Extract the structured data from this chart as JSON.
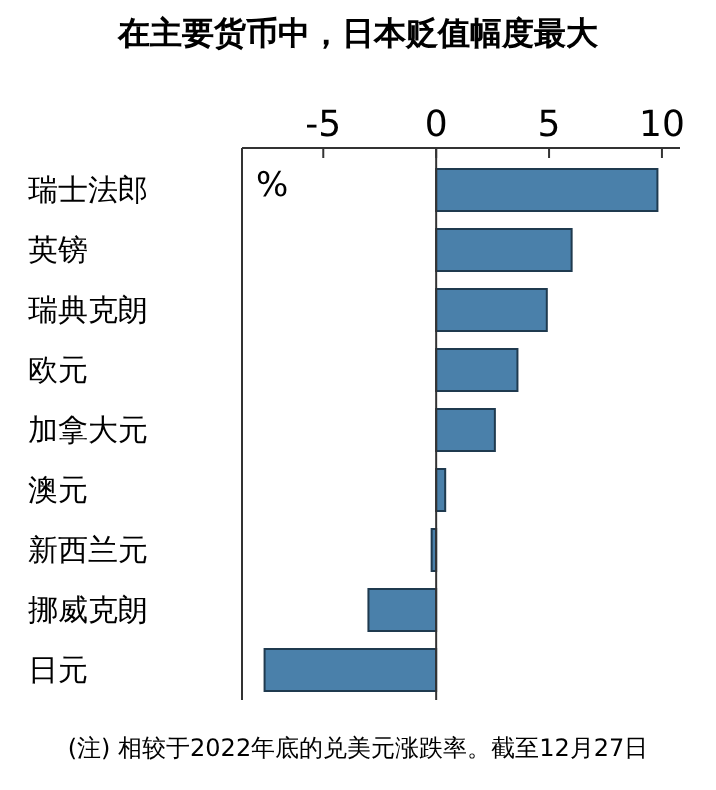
{
  "chart_data": {
    "type": "bar",
    "orientation": "horizontal",
    "title": "在主要货币中，日本贬值幅度最大",
    "categories": [
      "瑞士法郎",
      "英镑",
      "瑞典克朗",
      "欧元",
      "加拿大元",
      "澳元",
      "新西兰元",
      "挪威克朗",
      "日元"
    ],
    "values": [
      9.8,
      6.0,
      4.9,
      3.6,
      2.6,
      0.4,
      -0.2,
      -3.0,
      -7.6
    ],
    "color": "#4a80aa",
    "xlim": [
      -8.6,
      10.8
    ],
    "xticks": [
      -5,
      0,
      5,
      10
    ],
    "annotations": [
      "%",
      "(注) 相较于2022年底的兑美元涨跌率。截至12月27日"
    ]
  }
}
